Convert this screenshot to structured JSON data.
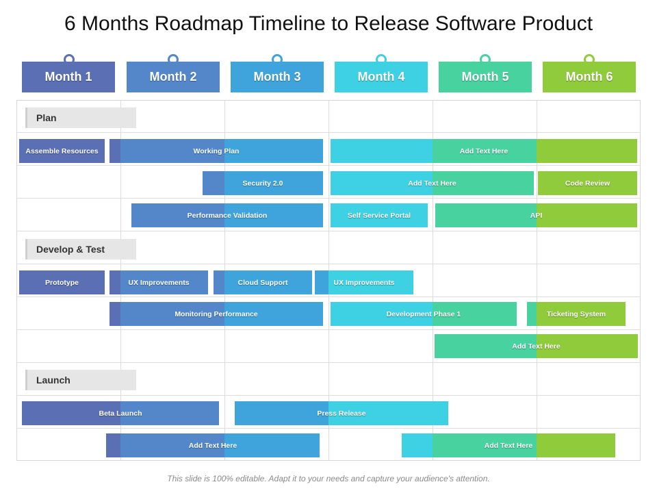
{
  "title": "6 Months Roadmap Timeline to Release Software Product",
  "months": [
    {
      "label": "Month 1",
      "color": "#5a6fb4"
    },
    {
      "label": "Month 2",
      "color": "#5387c9"
    },
    {
      "label": "Month 3",
      "color": "#3fa4dc"
    },
    {
      "label": "Month 4",
      "color": "#3ed0e3"
    },
    {
      "label": "Month 5",
      "color": "#47d2a0"
    },
    {
      "label": "Month 6",
      "color": "#8fcb3a"
    }
  ],
  "sections": {
    "plan": "Plan",
    "develop": "Develop & Test",
    "launch": "Launch"
  },
  "bars": {
    "assemble_resources": "Assemble Resources",
    "working_plan": "Working Plan",
    "add_text_1": "Add Text Here",
    "security": "Security 2.0",
    "add_text_2": "Add Text Here",
    "code_review": "Code Review",
    "performance_validation": "Performance Validation",
    "self_service_portal": "Self Service Portal",
    "api": "API",
    "prototype": "Prototype",
    "ux_improvements_1": "UX Improvements",
    "cloud_support": "Cloud Support",
    "ux_improvements_2": "UX Improvements",
    "monitoring_performance": "Monitoring Performance",
    "development_phase": "Development Phase 1",
    "ticketing_system": "Ticketing System",
    "add_text_3": "Add Text Here",
    "beta_launch": "Beta Launch",
    "press_release": "Press Release",
    "add_text_4": "Add Text Here",
    "add_text_5": "Add Text Here"
  },
  "footer": "This slide is 100% editable. Adapt it to your needs and capture your audience's attention."
}
